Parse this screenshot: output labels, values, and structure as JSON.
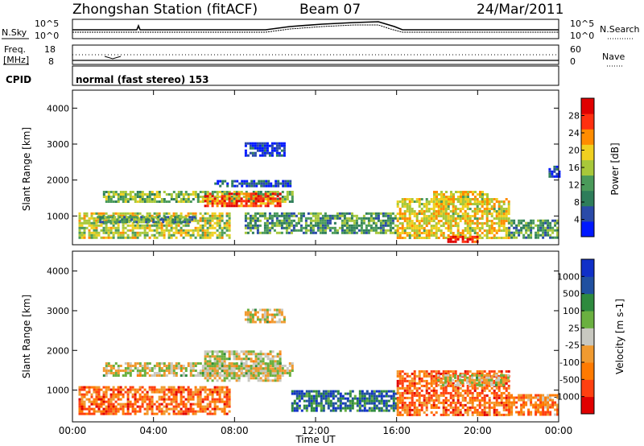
{
  "header": {
    "title": "Zhongshan Station (fitACF)",
    "beam": "Beam 07",
    "date": "24/Mar/2011"
  },
  "strip1": {
    "left_label": "N.Sky",
    "left_ticks": [
      "10^5",
      "10^0"
    ],
    "right_ticks": [
      "10^5",
      "10^0"
    ],
    "right_label": "N.Search"
  },
  "strip2": {
    "left_label": "Freq.",
    "left_unit": "[MHz]",
    "left_ticks": [
      "18",
      "8"
    ],
    "right_ticks": [
      "60",
      "0"
    ],
    "right_label": "Nave"
  },
  "cpid": {
    "label": "CPID",
    "value": "normal (fast stereo) 153"
  },
  "colors": {
    "power": [
      "#0018ff",
      "#2a4aa8",
      "#2e7d5a",
      "#4a9a5a",
      "#a8c83a",
      "#f0d020",
      "#ff8c00",
      "#ff3010",
      "#e00000"
    ],
    "velocity": [
      "#e00000",
      "#ff4010",
      "#ff7a00",
      "#f09a30",
      "#c8c8c0",
      "#6ab040",
      "#2e8a3e",
      "#2050a0",
      "#1030c8"
    ]
  },
  "chart_data": [
    {
      "type": "heatmap",
      "title": "",
      "xlabel": "",
      "ylabel": "Slant Range [km]",
      "x_ticks": [
        "00:00",
        "04:00",
        "08:00",
        "12:00",
        "16:00",
        "20:00",
        "00:00"
      ],
      "xlim": [
        0,
        24
      ],
      "ylim": [
        200,
        4500
      ],
      "y_ticks": [
        "1000",
        "2000",
        "3000",
        "4000"
      ],
      "colorbar": {
        "label": "Power [dB]",
        "ticks": [
          "4",
          "8",
          "12",
          "16",
          "20",
          "24",
          "28"
        ],
        "range": [
          0,
          30
        ]
      },
      "regions": [
        {
          "t0": 0.3,
          "t1": 7.8,
          "r0": 400,
          "r1": 1100,
          "level": 0.55
        },
        {
          "t0": 1.5,
          "t1": 10.8,
          "r0": 1380,
          "r1": 1700,
          "level": 0.45
        },
        {
          "t0": 6.5,
          "t1": 10.2,
          "r0": 1250,
          "r1": 1650,
          "level": 0.8
        },
        {
          "t0": 1.2,
          "t1": 6.0,
          "r0": 850,
          "r1": 1000,
          "level": 0.35
        },
        {
          "t0": 8.5,
          "t1": 10.5,
          "r0": 2700,
          "r1": 3050,
          "level": 0.1
        },
        {
          "t0": 7.0,
          "t1": 10.8,
          "r0": 1800,
          "r1": 2000,
          "level": 0.15
        },
        {
          "t0": 8.5,
          "t1": 16.0,
          "r0": 500,
          "r1": 1100,
          "level": 0.35
        },
        {
          "t0": 16.0,
          "t1": 21.5,
          "r0": 400,
          "r1": 1500,
          "level": 0.6
        },
        {
          "t0": 17.8,
          "t1": 20.5,
          "r0": 1350,
          "r1": 1700,
          "level": 0.6
        },
        {
          "t0": 18.5,
          "t1": 20.0,
          "r0": 300,
          "r1": 450,
          "level": 0.9
        },
        {
          "t0": 21.5,
          "t1": 24.0,
          "r0": 400,
          "r1": 900,
          "level": 0.35
        },
        {
          "t0": 23.5,
          "t1": 24.0,
          "r0": 2100,
          "r1": 2400,
          "level": 0.1
        }
      ]
    },
    {
      "type": "heatmap",
      "title": "",
      "xlabel": "Time UT",
      "ylabel": "Slant Range [km]",
      "x_ticks": [
        "00:00",
        "04:00",
        "08:00",
        "12:00",
        "16:00",
        "20:00",
        "00:00"
      ],
      "xlim": [
        0,
        24
      ],
      "ylim": [
        200,
        4500
      ],
      "y_ticks": [
        "1000",
        "2000",
        "3000",
        "4000"
      ],
      "colorbar": {
        "label": "Velocity [m s-1]",
        "ticks": [
          "1000",
          "500",
          "100",
          "25",
          "-25",
          "-100",
          "-500",
          "-1000"
        ],
        "range": [
          -1000,
          1000
        ]
      },
      "regions": [
        {
          "t0": 0.3,
          "t1": 7.8,
          "r0": 400,
          "r1": 1100,
          "level": 0.25
        },
        {
          "t0": 1.5,
          "t1": 10.8,
          "r0": 1380,
          "r1": 1700,
          "level": 0.5
        },
        {
          "t0": 6.5,
          "t1": 10.2,
          "r0": 1250,
          "r1": 2000,
          "level": 0.5
        },
        {
          "t0": 8.5,
          "t1": 10.5,
          "r0": 2700,
          "r1": 3050,
          "level": 0.5
        },
        {
          "t0": 10.8,
          "t1": 16.0,
          "r0": 500,
          "r1": 1000,
          "level": 0.8
        },
        {
          "t0": 16.0,
          "t1": 21.5,
          "r0": 400,
          "r1": 1500,
          "level": 0.25
        },
        {
          "t0": 18.0,
          "t1": 21.5,
          "r0": 1100,
          "r1": 1400,
          "level": 0.5
        },
        {
          "t0": 21.5,
          "t1": 24.0,
          "r0": 400,
          "r1": 900,
          "level": 0.3
        }
      ]
    }
  ]
}
